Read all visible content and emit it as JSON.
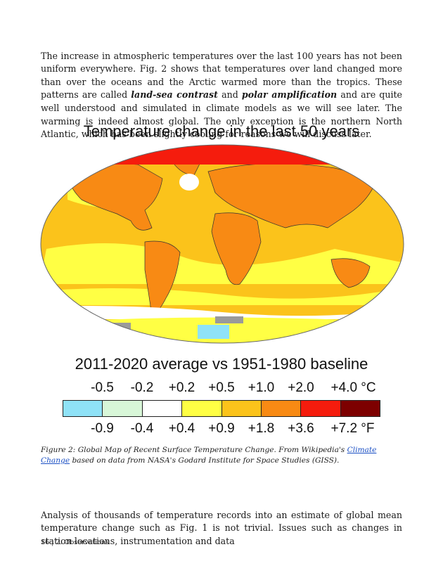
{
  "intro": {
    "part1": "The increase in atmospheric temperatures over the last 100 years has not been uniform everywhere. Fig. 2 shows that temperatures over land changed more than over the oceans and the Arctic warmed more than the tropics. These patterns are called ",
    "term1": "land-sea contrast",
    "part2": " and ",
    "term2": "polar amplification",
    "part3": " and are quite well understood and simulated in climate models as we will see later. The warming is indeed almost global. The only exception is the northern North Atlantic, which has been slightly cooling for reasons we will discuss later."
  },
  "figure": {
    "title": "Temperature change in the last 50 years",
    "subtitle": "2011-2020 average vs 1951-1980 baseline",
    "legend": {
      "celsius": [
        "-0.5",
        "-0.2",
        "+0.2",
        "+0.5",
        "+1.0",
        "+2.0",
        "+4.0 °C"
      ],
      "fahrenheit": [
        "-0.9",
        "-0.4",
        "+0.4",
        "+0.9",
        "+1.8",
        "+3.6",
        "+7.2 °F"
      ],
      "colors": [
        "#8fe2f7",
        "#d8f7d8",
        "#ffffff",
        "#ffff44",
        "#fbc31b",
        "#f88a14",
        "#f51c0d",
        "#7d0000"
      ]
    },
    "map_colors": {
      "ocean_base": "#fbc31b",
      "land_base": "#f88a14",
      "arctic": "#f51c0d",
      "cool_patch": "#ffffff",
      "cold_patch": "#8fe2f7",
      "no_data": "#9a9a9a",
      "light_warm": "#ffff44"
    }
  },
  "caption": {
    "prefix": "Figure 2: Global Map of Recent Surface Temperature Change. From Wikipedia's ",
    "link": "Climate Change",
    "suffix": " based on data from NASA's Godard Institute for Space Studies (GISS)."
  },
  "after": {
    "text": "Analysis of thousands of temperature records into an estimate of global mean temperature change such as Fig. 1 is not trivial. Issues such as changes in station locations, instrumentation and data"
  },
  "footer": {
    "text": "16 | 2. Observations"
  }
}
